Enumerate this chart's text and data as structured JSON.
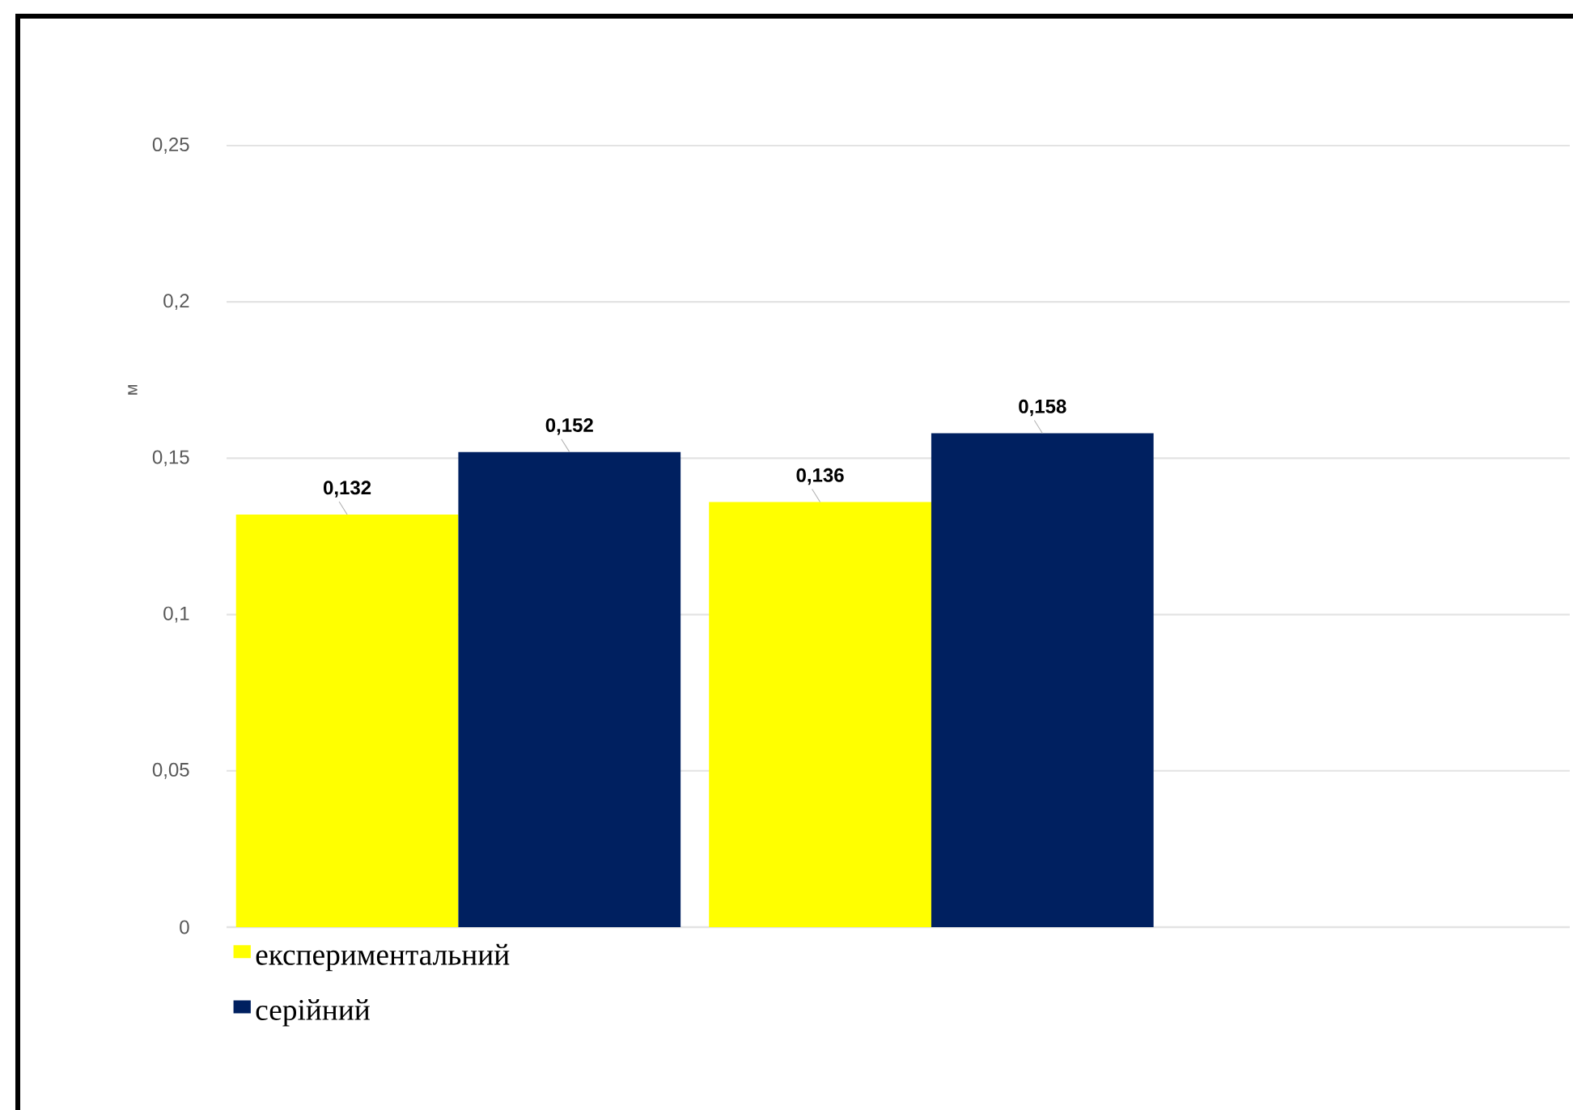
{
  "chart_data": {
    "type": "bar",
    "ylabel": "м",
    "categories": [
      null,
      null
    ],
    "series": [
      {
        "name": "експериментальний",
        "color": "#ffff00",
        "values": [
          0.132,
          0.136
        ],
        "value_labels": [
          "0,132",
          "0,136"
        ]
      },
      {
        "name": "серійний",
        "color": "#002060",
        "values": [
          0.152,
          0.158
        ],
        "value_labels": [
          "0,152",
          "0,158"
        ]
      }
    ],
    "ylim": [
      0,
      0.25
    ],
    "yticks": [
      0,
      {
        "value": 0.05,
        "label": "0,05"
      },
      {
        "value": 0.1,
        "label": "0,1"
      },
      {
        "value": 0.15,
        "label": "0,15"
      },
      {
        "value": 0.2,
        "label": "0,2"
      },
      {
        "value": 0.25,
        "label": "0,25"
      }
    ],
    "grid": "y",
    "legend": "bottom left"
  }
}
